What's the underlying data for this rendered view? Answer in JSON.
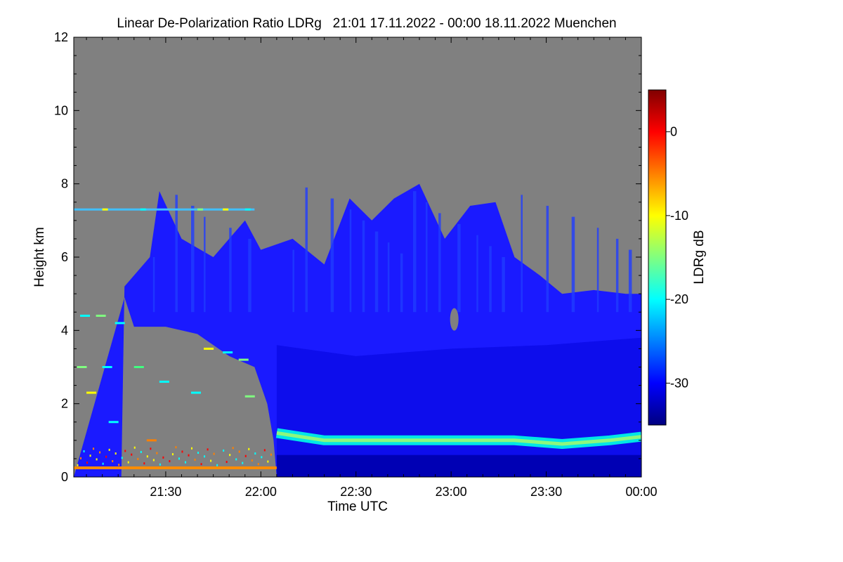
{
  "chart_data": {
    "type": "heatmap",
    "title": "Linear De-Polarization Ratio LDRg   21:01 17.11.2022 - 00:00 18.11.2022 Muenchen",
    "xlabel": "Time UTC",
    "ylabel": "Height km",
    "x_ticks": [
      "21:30",
      "22:00",
      "22:30",
      "23:00",
      "23:30",
      "00:00"
    ],
    "x_tick_minutes": [
      30,
      60,
      90,
      120,
      150,
      180
    ],
    "xlim_minutes": [
      1,
      180
    ],
    "y_ticks": [
      0,
      2,
      4,
      6,
      8,
      10,
      12
    ],
    "ylim": [
      0,
      12
    ],
    "colorbar": {
      "label": "LDRg dB",
      "ticks": [
        0,
        -10,
        -20,
        -30
      ],
      "range": [
        -35,
        5
      ],
      "colors": [
        "#000080",
        "#0000ff",
        "#0080ff",
        "#00ffff",
        "#80ff80",
        "#ffff00",
        "#ff8000",
        "#ff0000",
        "#800000"
      ]
    },
    "background_color": "#808080",
    "features": {
      "cloud_top_km": [
        {
          "t": 1,
          "h": 0
        },
        {
          "t": 16,
          "h": 0
        },
        {
          "t": 17,
          "h": 5.2
        },
        {
          "t": 25,
          "h": 6.0
        },
        {
          "t": 28,
          "h": 7.8
        },
        {
          "t": 35,
          "h": 6.5
        },
        {
          "t": 45,
          "h": 6.0
        },
        {
          "t": 55,
          "h": 7.0
        },
        {
          "t": 60,
          "h": 6.2
        },
        {
          "t": 70,
          "h": 6.5
        },
        {
          "t": 80,
          "h": 5.8
        },
        {
          "t": 88,
          "h": 7.6
        },
        {
          "t": 95,
          "h": 7.0
        },
        {
          "t": 102,
          "h": 7.6
        },
        {
          "t": 110,
          "h": 8.0
        },
        {
          "t": 118,
          "h": 6.5
        },
        {
          "t": 126,
          "h": 7.4
        },
        {
          "t": 134,
          "h": 7.5
        },
        {
          "t": 140,
          "h": 6.0
        },
        {
          "t": 148,
          "h": 5.5
        },
        {
          "t": 155,
          "h": 5.0
        },
        {
          "t": 165,
          "h": 5.1
        },
        {
          "t": 175,
          "h": 5.0
        },
        {
          "t": 180,
          "h": 5.0
        }
      ],
      "cloud_base_km": [
        {
          "t": 17,
          "h": 4.9
        },
        {
          "t": 20,
          "h": 4.1
        },
        {
          "t": 30,
          "h": 4.1
        },
        {
          "t": 40,
          "h": 3.9
        },
        {
          "t": 50,
          "h": 3.3
        },
        {
          "t": 58,
          "h": 3.0
        },
        {
          "t": 62,
          "h": 2.0
        },
        {
          "t": 64,
          "h": 1.0
        },
        {
          "t": 65,
          "h": 0
        },
        {
          "t": 180,
          "h": 0
        }
      ],
      "boundary_layer_band_km": [
        {
          "t": 65,
          "h": 1.2
        },
        {
          "t": 80,
          "h": 1.0
        },
        {
          "t": 100,
          "h": 1.0
        },
        {
          "t": 120,
          "h": 1.0
        },
        {
          "t": 140,
          "h": 1.0
        },
        {
          "t": 155,
          "h": 0.9
        },
        {
          "t": 170,
          "h": 1.0
        },
        {
          "t": 180,
          "h": 1.1
        }
      ],
      "thin_layer_km": 7.3,
      "surface_layer_km": 0.25
    }
  }
}
